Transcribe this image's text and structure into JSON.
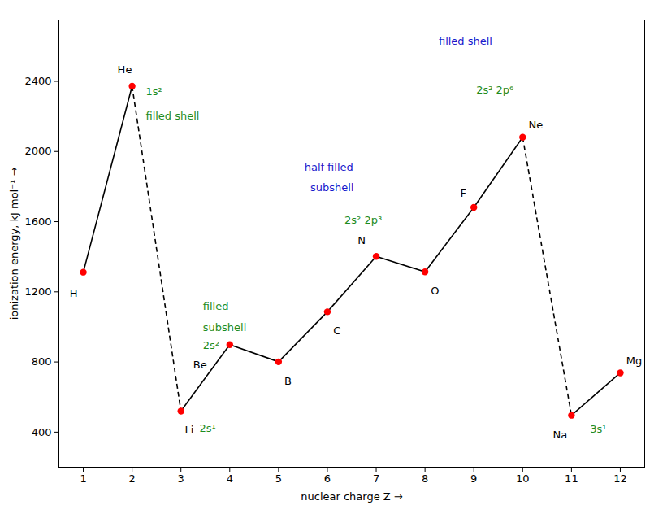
{
  "chart_data": {
    "type": "line",
    "x": [
      1,
      2,
      3,
      4,
      5,
      6,
      7,
      8,
      9,
      10,
      11,
      12
    ],
    "values": [
      1312,
      2372,
      520,
      899,
      801,
      1086,
      1402,
      1314,
      1681,
      2081,
      496,
      738
    ],
    "xlabel": "nuclear charge Z",
    "ylabel": "ionization energy, kJ mol⁻¹",
    "xlim": [
      0.5,
      12.5
    ],
    "ylim": [
      200,
      2750
    ],
    "xticks": [
      1,
      2,
      3,
      4,
      5,
      6,
      7,
      8,
      9,
      10,
      11,
      12
    ],
    "yticks": [
      400,
      800,
      1200,
      1600,
      2000,
      2400
    ],
    "grid": false,
    "color": "#000000",
    "colors": [
      "#ff0000",
      "#ff0000",
      "#ff0000",
      "#ff0000",
      "#ff0000",
      "#ff0000",
      "#ff0000",
      "#ff0000",
      "#ff0000",
      "#ff0000",
      "#ff0000",
      "#ff0000"
    ],
    "marker": "circle",
    "line_style": "solid",
    "dashed_segments": [
      [
        2,
        3
      ],
      [
        10,
        11
      ]
    ],
    "annotations": [
      {
        "text": "H",
        "x": 0.72,
        "y": 1192,
        "color": "#000000"
      },
      {
        "text": "He",
        "x": 1.7,
        "y": 2467,
        "color": "#000000"
      },
      {
        "text": "Li",
        "x": 3.08,
        "y": 410,
        "color": "#000000"
      },
      {
        "text": "Be",
        "x": 3.25,
        "y": 784,
        "color": "#000000"
      },
      {
        "text": "B",
        "x": 5.12,
        "y": 691,
        "color": "#000000"
      },
      {
        "text": "C",
        "x": 6.12,
        "y": 976,
        "color": "#000000"
      },
      {
        "text": "N",
        "x": 6.62,
        "y": 1492,
        "color": "#000000"
      },
      {
        "text": "O",
        "x": 8.12,
        "y": 1204,
        "color": "#000000"
      },
      {
        "text": "F",
        "x": 8.72,
        "y": 1760,
        "color": "#000000"
      },
      {
        "text": "Ne",
        "x": 10.12,
        "y": 2151,
        "color": "#000000"
      },
      {
        "text": "Na",
        "x": 10.62,
        "y": 386,
        "color": "#000000"
      },
      {
        "text": "Mg",
        "x": 12.12,
        "y": 808,
        "color": "#000000"
      },
      {
        "text": "1s²",
        "x": 2.28,
        "y": 2340,
        "color": "#1e8c1e"
      },
      {
        "text": "filled shell",
        "x": 2.28,
        "y": 2200,
        "color": "#1e8c1e"
      },
      {
        "text": "2s¹",
        "x": 3.38,
        "y": 420,
        "color": "#1e8c1e"
      },
      {
        "text": "filled",
        "x": 3.45,
        "y": 1115,
        "color": "#1e8c1e"
      },
      {
        "text": "subshell",
        "x": 3.45,
        "y": 995,
        "color": "#1e8c1e"
      },
      {
        "text": "2s²",
        "x": 3.45,
        "y": 895,
        "color": "#1e8c1e"
      },
      {
        "text": "2s² 2p³",
        "x": 6.35,
        "y": 1610,
        "color": "#1e8c1e"
      },
      {
        "text": "2s² 2p⁶",
        "x": 9.05,
        "y": 2350,
        "color": "#1e8c1e"
      },
      {
        "text": "3s¹",
        "x": 11.38,
        "y": 415,
        "color": "#1e8c1e"
      },
      {
        "text": "half-filled",
        "x": 5.53,
        "y": 1910,
        "color": "#1a1acc"
      },
      {
        "text": "subshell",
        "x": 5.65,
        "y": 1795,
        "color": "#1a1acc"
      },
      {
        "text": "filled shell",
        "x": 8.28,
        "y": 2630,
        "color": "#1a1acc"
      }
    ]
  }
}
